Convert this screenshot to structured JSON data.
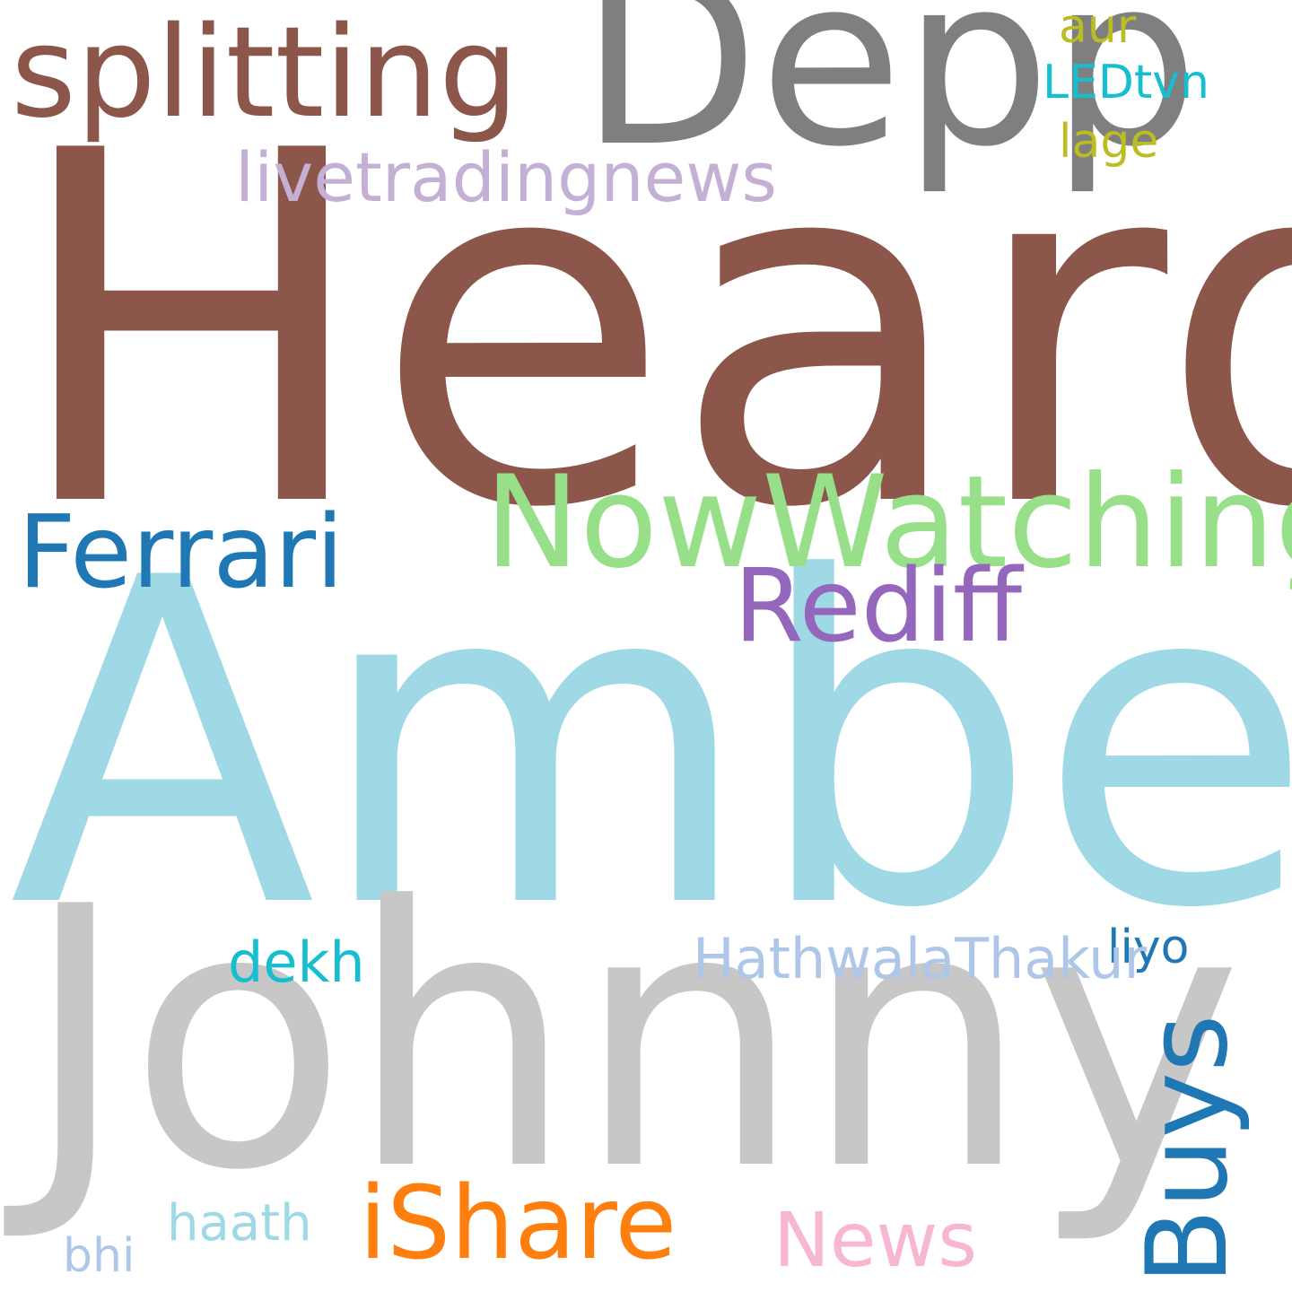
{
  "words": {
    "heard": {
      "text": "Heard",
      "color": "#8c564b"
    },
    "amber": {
      "text": "Amber",
      "color": "#a0d9e6"
    },
    "johnny": {
      "text": "Johnny",
      "color": "#c7c7c7"
    },
    "depp": {
      "text": "Depp",
      "color": "#7f7f7f"
    },
    "splitting": {
      "text": "splitting",
      "color": "#8c564b"
    },
    "nowwatching": {
      "text": "NowWatching",
      "color": "#98df8a"
    },
    "ferrari": {
      "text": "Ferrari",
      "color": "#1f77b4"
    },
    "rediff": {
      "text": "Rediff",
      "color": "#9467bd"
    },
    "ishare": {
      "text": "iShare",
      "color": "#ff7f0e"
    },
    "buys": {
      "text": "Buys",
      "color": "#1f77b4"
    },
    "livetradingnews": {
      "text": "livetradingnews",
      "color": "#c5b0d5"
    },
    "news": {
      "text": "News",
      "color": "#f7b6d2"
    },
    "hathwalathakur": {
      "text": "HathwalaThakur",
      "color": "#aec7e8"
    },
    "dekh": {
      "text": "dekh",
      "color": "#17becf"
    },
    "liyo": {
      "text": "liyo",
      "color": "#1f77b4"
    },
    "haath": {
      "text": "haath",
      "color": "#9edae5"
    },
    "bhi": {
      "text": "bhi",
      "color": "#aec7e8"
    },
    "aur": {
      "text": "aur",
      "color": "#bcbd22"
    },
    "ledtvn": {
      "text": "LEDtvn",
      "color": "#17becf"
    },
    "lage": {
      "text": "lage",
      "color": "#bcbd22"
    }
  }
}
